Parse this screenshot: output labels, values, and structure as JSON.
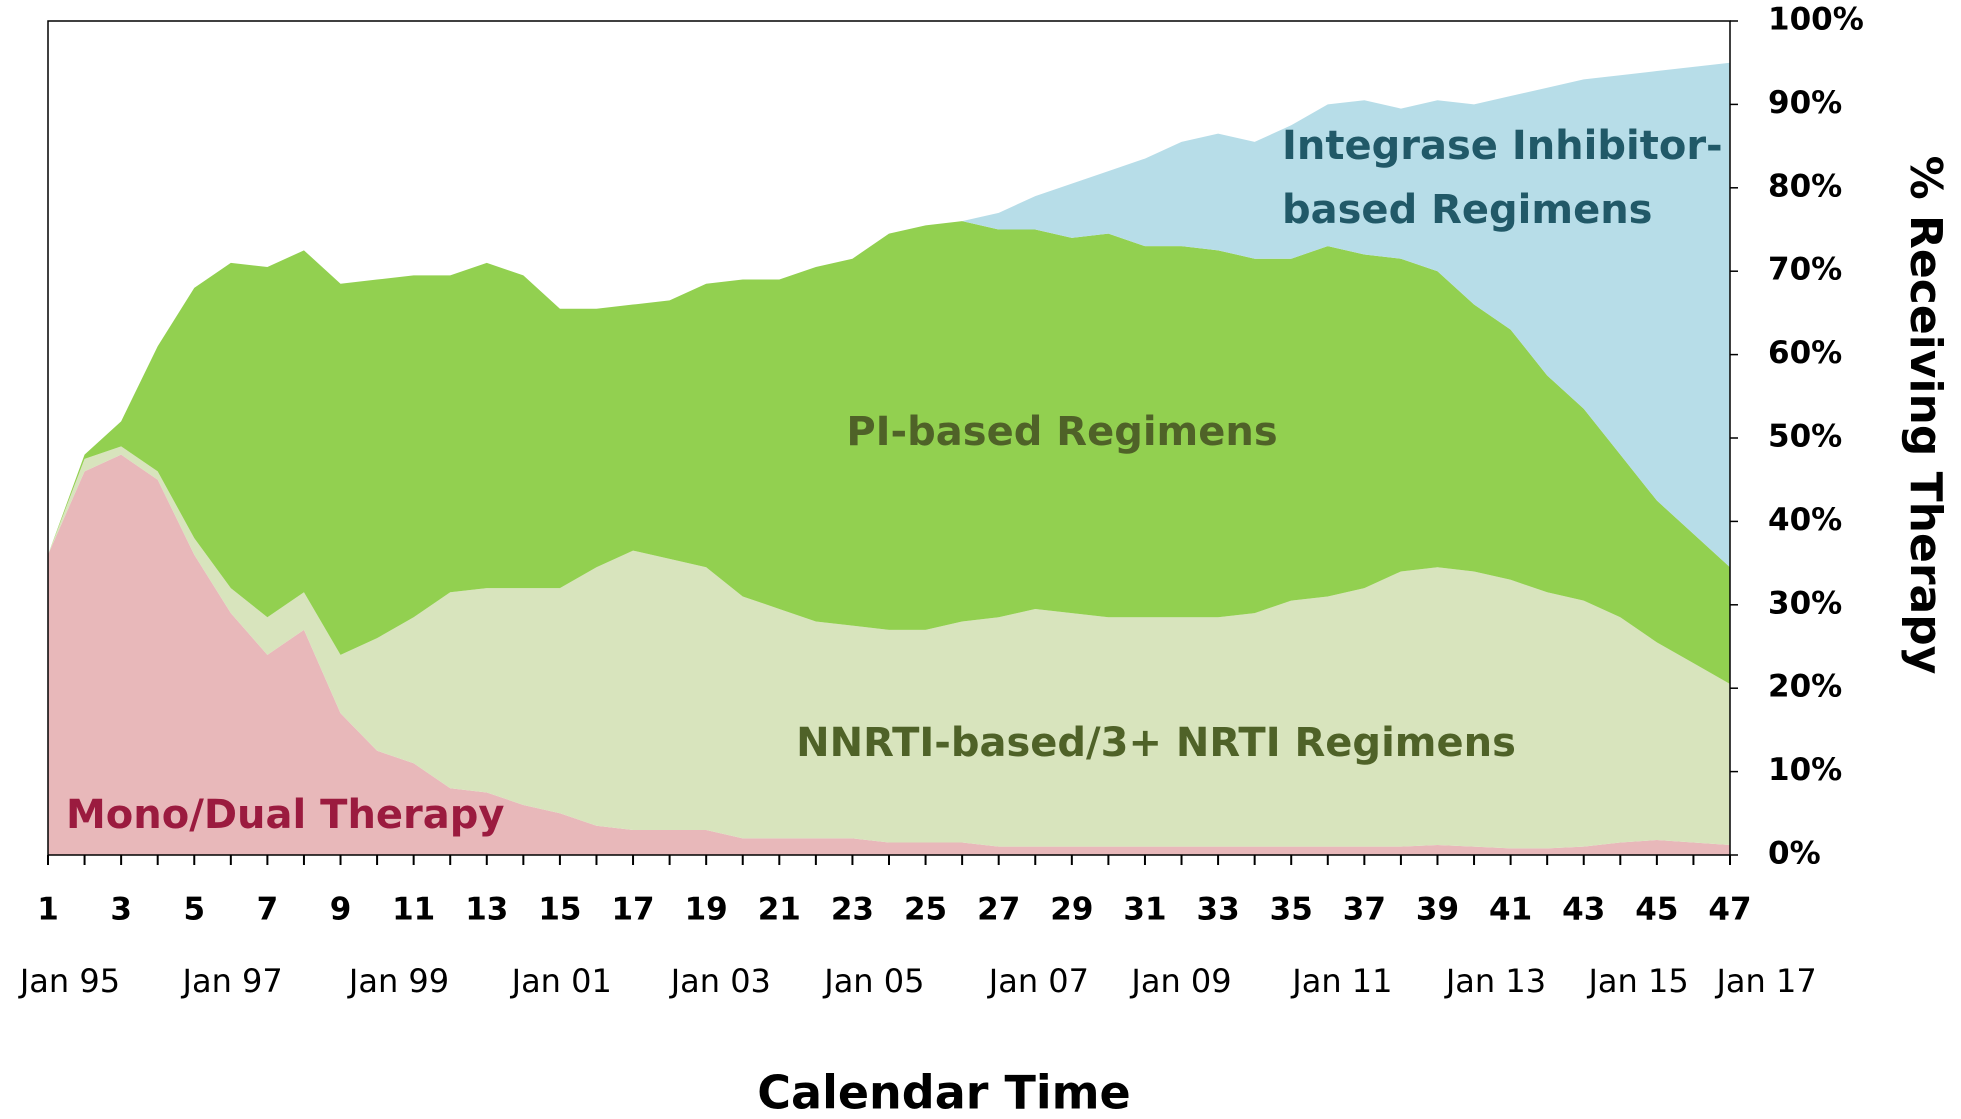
{
  "chart_data": {
    "type": "stacked_area",
    "x_title": "Calendar Time",
    "y_title": "% Receiving Therapy",
    "x": [
      1,
      2,
      3,
      4,
      5,
      6,
      7,
      8,
      9,
      10,
      11,
      12,
      13,
      14,
      15,
      16,
      17,
      18,
      19,
      20,
      21,
      22,
      23,
      24,
      25,
      26,
      27,
      28,
      29,
      30,
      31,
      32,
      33,
      34,
      35,
      36,
      37,
      38,
      39,
      40,
      41,
      42,
      43,
      44,
      45,
      46,
      47
    ],
    "xlim": [
      1,
      47
    ],
    "xticks": [
      1,
      3,
      5,
      7,
      9,
      11,
      13,
      15,
      17,
      19,
      21,
      23,
      25,
      27,
      29,
      31,
      33,
      35,
      37,
      39,
      41,
      43,
      45,
      47
    ],
    "date_labels": [
      {
        "value": 1.6,
        "label": "Jan 95"
      },
      {
        "value": 6.05,
        "label": "Jan 97"
      },
      {
        "value": 10.6,
        "label": "Jan 99"
      },
      {
        "value": 15.05,
        "label": "Jan 01"
      },
      {
        "value": 19.4,
        "label": "Jan 03"
      },
      {
        "value": 23.6,
        "label": "Jan 05"
      },
      {
        "value": 28.1,
        "label": "Jan 07"
      },
      {
        "value": 32,
        "label": "Jan 09"
      },
      {
        "value": 36.4,
        "label": "Jan 11"
      },
      {
        "value": 40.6,
        "label": "Jan 13"
      },
      {
        "value": 44.5,
        "label": "Jan 15"
      },
      {
        "value": 48,
        "label": "Jan 17"
      }
    ],
    "ylim": [
      0,
      100
    ],
    "yticks": [
      {
        "value": 0,
        "label": "0%"
      },
      {
        "value": 10,
        "label": "10%"
      },
      {
        "value": 20,
        "label": "20%"
      },
      {
        "value": 30,
        "label": "30%"
      },
      {
        "value": 40,
        "label": "40%"
      },
      {
        "value": 50,
        "label": "50%"
      },
      {
        "value": 60,
        "label": "60%"
      },
      {
        "value": 70,
        "label": "70%"
      },
      {
        "value": 80,
        "label": "80%"
      },
      {
        "value": 90,
        "label": "90%"
      },
      {
        "value": 100,
        "label": "100%"
      }
    ],
    "series": [
      {
        "name": "Mono/Dual Therapy",
        "color": "#e8b8ba",
        "text_color": "#9b1b3f",
        "values": [
          36,
          46,
          48,
          45,
          36,
          29,
          24,
          27,
          17,
          12.5,
          11,
          8,
          7.5,
          6,
          5,
          3.5,
          3,
          3,
          3,
          2,
          2,
          2,
          2,
          1.5,
          1.5,
          1.5,
          1,
          1,
          1,
          1,
          1,
          1,
          1,
          1,
          1,
          1,
          1,
          1,
          1.2,
          1,
          0.8,
          0.8,
          1,
          1.5,
          1.8,
          1.5,
          1.2
        ]
      },
      {
        "name": "NNRTI-based/3+ NRTI Regimens",
        "color": "#d8e4bd",
        "text_color": "#4f6228",
        "values": [
          0,
          1.5,
          1,
          1,
          2,
          3,
          4.5,
          4.5,
          7,
          13.5,
          17.5,
          23.5,
          24.5,
          26,
          27,
          31,
          33.5,
          32.5,
          31.5,
          29,
          27.5,
          26,
          25.5,
          25.5,
          25.5,
          26.5,
          27.5,
          28.5,
          28,
          27.5,
          27.5,
          27.5,
          27.5,
          28,
          29.5,
          30,
          31,
          33,
          33.3,
          33,
          32.2,
          30.7,
          29.5,
          27,
          23.7,
          21.5,
          19.3
        ]
      },
      {
        "name": "PI-based Regimens",
        "color": "#92d050",
        "text_color": "#4f6228",
        "values": [
          0,
          0.5,
          3,
          15,
          30,
          39,
          42,
          41,
          44.5,
          43,
          41,
          38,
          39,
          37.5,
          33.5,
          31,
          29.5,
          31,
          34,
          38,
          39.5,
          42.5,
          44,
          47.5,
          48.5,
          48,
          46.5,
          45.5,
          45,
          46,
          44.5,
          44.5,
          44,
          42.5,
          41,
          42,
          40,
          37.5,
          35.5,
          32,
          30,
          26,
          23,
          19.5,
          17,
          15.5,
          14
        ]
      },
      {
        "name": "Integrase Inhibitor-based Regimens",
        "color": "#b7dde8",
        "text_color": "#215968",
        "values": [
          0,
          0,
          0,
          0,
          0,
          0,
          0,
          0,
          0,
          0,
          0,
          0,
          0,
          0,
          0,
          0,
          0,
          0,
          0,
          0,
          0,
          0,
          0,
          0,
          0,
          0,
          2,
          4,
          6.5,
          7.5,
          10.5,
          12.5,
          14,
          14,
          16,
          17,
          18.5,
          18,
          20.5,
          24,
          28,
          34.5,
          39.5,
          45.5,
          51.5,
          56,
          60.5
        ]
      }
    ]
  }
}
